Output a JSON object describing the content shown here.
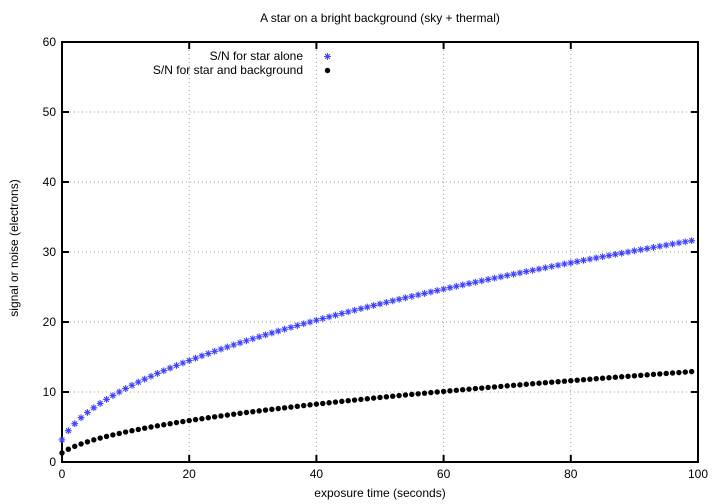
{
  "chart_data": {
    "type": "scatter",
    "title": "A star on a bright background (sky + thermal)",
    "xlabel": "exposure time (seconds)",
    "ylabel": "signal or noise (electrons)",
    "xlim": [
      0,
      100
    ],
    "ylim": [
      0,
      60
    ],
    "xticks": [
      0,
      20,
      40,
      60,
      80,
      100
    ],
    "yticks": [
      0,
      10,
      20,
      30,
      40,
      50,
      60
    ],
    "grid": "dotted",
    "grid_color": "#a0a0a0",
    "border_color": "#000000",
    "background_color": "#ffffff",
    "legend_position": "inside-top-left",
    "series": [
      {
        "name": "S/N for star alone",
        "marker": "asterisk",
        "color": "#4040ff",
        "model": "S/N = sqrt(10*t)  (star signal 10 e-/s, noise from star only)",
        "generator": {
          "x_start": 0,
          "x_end": 99,
          "x_step": 1,
          "x_offset": 1,
          "amp": 3.16228,
          "rule": "y = amp*sqrt(x + x_offset)"
        },
        "sampled_points": [
          [
            0,
            3.2
          ],
          [
            10,
            10.5
          ],
          [
            20,
            14.5
          ],
          [
            30,
            17.6
          ],
          [
            40,
            20.2
          ],
          [
            50,
            22.6
          ],
          [
            60,
            24.7
          ],
          [
            70,
            26.7
          ],
          [
            80,
            28.5
          ],
          [
            90,
            30.2
          ],
          [
            99,
            31.6
          ]
        ]
      },
      {
        "name": "S/N for star and background",
        "marker": "filled-circle",
        "color": "#000000",
        "model": "S/N = 10*t/sqrt(60*t)  (star + sky + thermal noise)",
        "generator": {
          "x_start": 0,
          "x_end": 99,
          "x_step": 1,
          "x_offset": 1,
          "amp": 1.29099,
          "rule": "y = amp*sqrt(x + x_offset)"
        },
        "sampled_points": [
          [
            0,
            1.3
          ],
          [
            10,
            4.3
          ],
          [
            20,
            5.9
          ],
          [
            30,
            7.2
          ],
          [
            40,
            8.3
          ],
          [
            50,
            9.2
          ],
          [
            60,
            10.1
          ],
          [
            70,
            10.9
          ],
          [
            80,
            11.6
          ],
          [
            90,
            12.3
          ],
          [
            99,
            12.9
          ]
        ]
      }
    ]
  }
}
